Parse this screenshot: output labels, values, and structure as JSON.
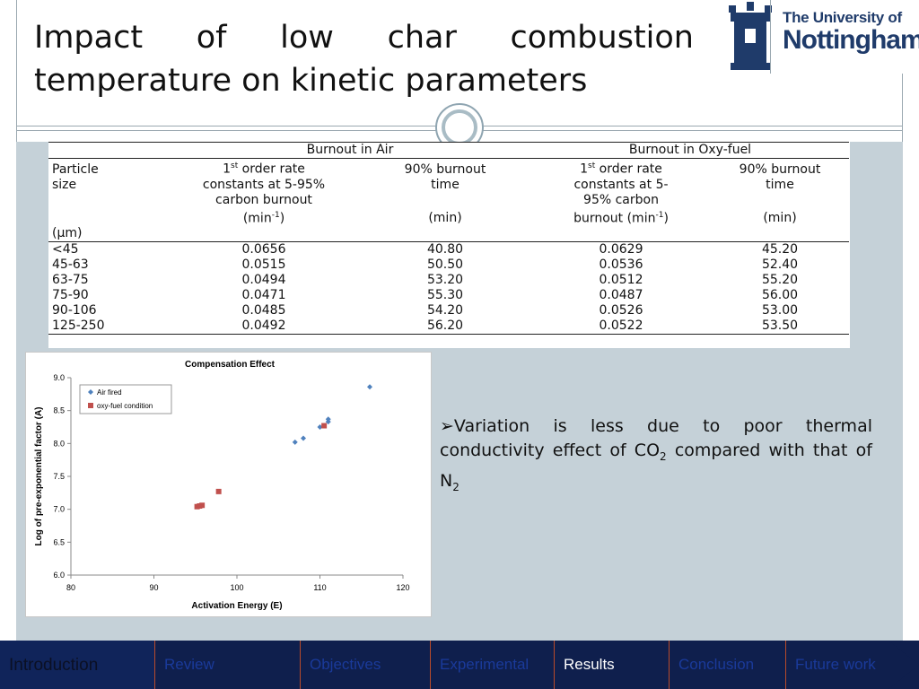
{
  "title": "Impact of low char combustion temperature on kinetic parameters",
  "logo": {
    "line1": "The University of",
    "line2": "Nottingham"
  },
  "table": {
    "group_headers": [
      "Burnout in Air",
      "Burnout in Oxy-fuel"
    ],
    "col1_header": [
      "Particle",
      "size"
    ],
    "col1_unit": "(µm)",
    "air_rate_header": [
      "1st order rate",
      "constants at 5-95%",
      "carbon burnout",
      "(min-1)"
    ],
    "air_time_header": [
      "90% burnout",
      "time",
      "(min)"
    ],
    "oxy_rate_header": [
      "1st order rate",
      "constants at 5-",
      "95% carbon",
      "burnout (min-1)"
    ],
    "oxy_time_header": [
      "90% burnout",
      "time",
      "(min)"
    ],
    "rows": [
      [
        "<45",
        "0.0656",
        "40.80",
        "0.0629",
        "45.20"
      ],
      [
        "45-63",
        "0.0515",
        "50.50",
        "0.0536",
        "52.40"
      ],
      [
        "63-75",
        "0.0494",
        "53.20",
        "0.0512",
        "55.20"
      ],
      [
        "75-90",
        "0.0471",
        "55.30",
        "0.0487",
        "56.00"
      ],
      [
        "90-106",
        "0.0485",
        "54.20",
        "0.0526",
        "53.00"
      ],
      [
        "125-250",
        "0.0492",
        "56.20",
        "0.0522",
        "53.50"
      ]
    ]
  },
  "chart_data": {
    "type": "scatter",
    "title": "Compensation Effect",
    "xlabel": "Activation Energy (E)",
    "ylabel": "Log of pre-exponential factor (A)",
    "xlim": [
      80,
      120
    ],
    "ylim": [
      6.0,
      9.0
    ],
    "xticks": [
      "80",
      "90",
      "100",
      "110",
      "120"
    ],
    "yticks": [
      "6.0",
      "6.5",
      "7.0",
      "7.5",
      "8.0",
      "8.5",
      "9.0"
    ],
    "legend_position": "top-left",
    "series": [
      {
        "name": "Air fired",
        "color": "#4f81bd",
        "marker": "diamond",
        "points": [
          [
            107,
            8.02
          ],
          [
            108,
            8.08
          ],
          [
            110,
            8.25
          ],
          [
            111,
            8.33
          ],
          [
            111,
            8.37
          ],
          [
            116,
            8.86
          ]
        ]
      },
      {
        "name": "oxy-fuel condition",
        "color": "#c0504d",
        "marker": "square",
        "points": [
          [
            95.2,
            7.04
          ],
          [
            95.5,
            7.05
          ],
          [
            95.8,
            7.06
          ],
          [
            97.8,
            7.27
          ],
          [
            110.5,
            8.27
          ]
        ]
      }
    ]
  },
  "bullet": {
    "marker": "➢",
    "text1": "Variation is less due to poor thermal conductivity effect of CO",
    "sub1": "2",
    "text2": " compared with that of N",
    "sub2": "2"
  },
  "nav": [
    "Introduction",
    "Review",
    "Objectives",
    "Experimental",
    "Results",
    "Conclusion",
    "Future work"
  ],
  "nav_active": "Results"
}
